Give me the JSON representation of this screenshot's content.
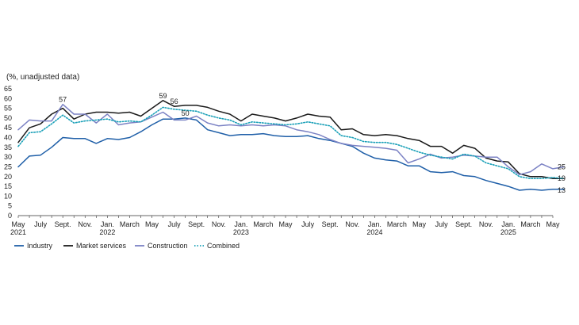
{
  "chart_data": {
    "type": "line",
    "unit_label": "(%, unadjusted data)",
    "ylim": [
      0,
      65
    ],
    "yticks": [
      0,
      5,
      10,
      15,
      20,
      25,
      30,
      35,
      40,
      45,
      50,
      55,
      60,
      65
    ],
    "grid": false,
    "legend_position": "bottom-left",
    "x_start": "2021-05",
    "x_end": "2025-05",
    "x_tick_labels": [
      {
        "month": "2021-05",
        "lines": [
          "May",
          "2021"
        ]
      },
      {
        "month": "2021-07",
        "lines": [
          "July"
        ]
      },
      {
        "month": "2021-09",
        "lines": [
          "Sept."
        ]
      },
      {
        "month": "2021-11",
        "lines": [
          "Nov."
        ]
      },
      {
        "month": "2022-01",
        "lines": [
          "Jan.",
          "2022"
        ]
      },
      {
        "month": "2022-03",
        "lines": [
          "March"
        ]
      },
      {
        "month": "2022-05",
        "lines": [
          "May"
        ]
      },
      {
        "month": "2022-07",
        "lines": [
          "July"
        ]
      },
      {
        "month": "2022-09",
        "lines": [
          "Sept."
        ]
      },
      {
        "month": "2022-11",
        "lines": [
          "Nov."
        ]
      },
      {
        "month": "2023-01",
        "lines": [
          "Jan.",
          "2023"
        ]
      },
      {
        "month": "2023-03",
        "lines": [
          "March"
        ]
      },
      {
        "month": "2023-05",
        "lines": [
          "May"
        ]
      },
      {
        "month": "2023-07",
        "lines": [
          "July"
        ]
      },
      {
        "month": "2023-09",
        "lines": [
          "Sept."
        ]
      },
      {
        "month": "2023-11",
        "lines": [
          "Nov."
        ]
      },
      {
        "month": "2024-01",
        "lines": [
          "Jan.",
          "2024"
        ]
      },
      {
        "month": "2024-03",
        "lines": [
          "March"
        ]
      },
      {
        "month": "2024-05",
        "lines": [
          "May"
        ]
      },
      {
        "month": "2024-07",
        "lines": [
          "July"
        ]
      },
      {
        "month": "2024-09",
        "lines": [
          "Sept."
        ]
      },
      {
        "month": "2024-11",
        "lines": [
          "Nov."
        ]
      },
      {
        "month": "2025-01",
        "lines": [
          "Jan.",
          "2025"
        ]
      },
      {
        "month": "2025-03",
        "lines": [
          "March"
        ]
      },
      {
        "month": "2025-05",
        "lines": [
          "May"
        ]
      }
    ],
    "series": [
      {
        "name": "Industry",
        "color": "#1f5fa8",
        "style": "solid",
        "values": [
          25,
          30.5,
          31,
          35,
          40,
          39.5,
          39.5,
          37,
          39.5,
          39,
          40,
          43,
          46.5,
          49.5,
          49.5,
          50,
          49,
          44,
          42.5,
          41,
          41.5,
          41.5,
          42,
          41,
          40.5,
          40.5,
          41,
          39.5,
          38.5,
          37,
          35.5,
          32,
          29.5,
          28.5,
          28,
          25.5,
          25.5,
          22.5,
          22,
          22.5,
          20.5,
          20,
          18,
          16.5,
          15,
          13,
          13.5,
          13,
          13.5,
          13.5
        ]
      },
      {
        "name": "Market services",
        "color": "#1a1a1a",
        "style": "solid",
        "values": [
          37.5,
          45,
          47,
          52,
          55,
          49.5,
          52,
          53,
          53,
          52.5,
          53,
          51,
          55,
          59,
          56,
          56.5,
          56.5,
          55.5,
          53.5,
          52,
          48.5,
          52,
          51,
          50,
          48.5,
          50,
          52,
          51,
          50.5,
          44,
          44.5,
          41.5,
          41,
          41.5,
          41,
          39.5,
          38.5,
          35.5,
          35.5,
          32,
          36,
          34.5,
          29.5,
          28,
          27.5,
          21.5,
          20,
          20,
          19,
          19
        ]
      },
      {
        "name": "Construction",
        "color": "#7b82c4",
        "style": "solid",
        "values": [
          44,
          49,
          48.5,
          48.5,
          57,
          52,
          52,
          47.5,
          52,
          46.5,
          47.5,
          48,
          50.5,
          53,
          49,
          49,
          51,
          47.5,
          46,
          46.5,
          46,
          46.5,
          46,
          46.5,
          46,
          44,
          43,
          41.5,
          39,
          37,
          36,
          35.5,
          35,
          34.5,
          33.5,
          27,
          29,
          31.5,
          29.5,
          30,
          31,
          30.5,
          30,
          30,
          25,
          21,
          22.5,
          26.5,
          24,
          25
        ]
      },
      {
        "name": "Combined",
        "color": "#1aa0b8",
        "style": "dotted",
        "values": [
          35.5,
          42.5,
          43,
          47,
          51.5,
          47.5,
          48.5,
          49,
          49.5,
          48,
          48.5,
          48,
          51.5,
          55.5,
          54.5,
          54,
          53.5,
          51.5,
          50,
          49,
          46.5,
          48,
          47.5,
          47,
          46.5,
          47,
          48,
          47,
          46,
          41,
          40,
          38,
          37.5,
          37.5,
          36.5,
          34.5,
          32.5,
          31,
          30,
          29,
          31.5,
          30.5,
          27,
          25.5,
          24,
          20,
          19,
          19,
          19.5,
          19
        ]
      }
    ],
    "annotations": [
      {
        "text": "57",
        "month": "2021-09",
        "value": 57
      },
      {
        "text": "59",
        "month": "2022-06",
        "value": 59
      },
      {
        "text": "56",
        "month": "2022-07",
        "value": 56
      },
      {
        "text": "50",
        "month": "2022-08",
        "value": 50
      }
    ],
    "end_labels": [
      {
        "text": "25",
        "value": 25
      },
      {
        "text": "19",
        "value": 19
      },
      {
        "text": "13",
        "value": 13
      }
    ]
  }
}
